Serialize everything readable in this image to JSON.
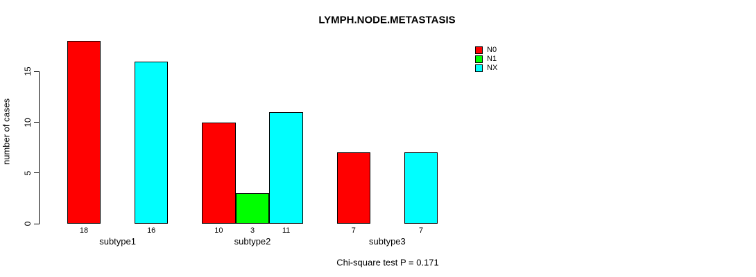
{
  "chart_data": {
    "type": "bar",
    "title": "LYMPH.NODE.METASTASIS",
    "xlabel": "",
    "ylabel": "number of cases",
    "annotation": "Chi-square test P = 0.171",
    "categories": [
      "subtype1",
      "subtype2",
      "subtype3"
    ],
    "series": [
      {
        "name": "N0",
        "color": "#ff0000",
        "values": [
          18,
          10,
          7
        ]
      },
      {
        "name": "N1",
        "color": "#00ff00",
        "values": [
          0,
          3,
          0
        ]
      },
      {
        "name": "NX",
        "color": "#00ffff",
        "values": [
          16,
          11,
          7
        ]
      }
    ],
    "ylim": [
      0,
      18
    ],
    "yticks": [
      0,
      5,
      10,
      15
    ],
    "grid": false,
    "legend_position": "top-right",
    "bar_value_labels_shown": true,
    "zero_bars_hidden": true,
    "axis_color": "#000000",
    "background_color": "#ffffff"
  }
}
